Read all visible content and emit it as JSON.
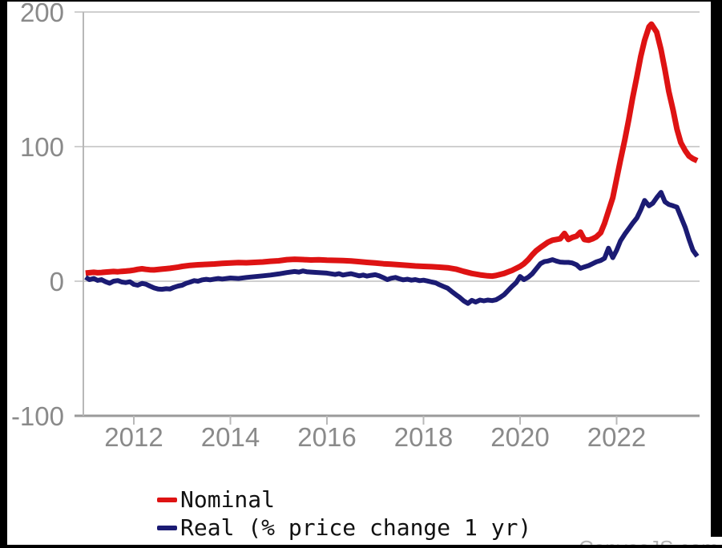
{
  "watermark": "CanvasJS.com",
  "legend": {
    "items": [
      {
        "label": "Nominal",
        "color": "#de1313"
      },
      {
        "label": "Real (% price change 1 yr)",
        "color": "#1b1b73"
      }
    ]
  },
  "colors": {
    "grid_line": "#cfcfcf",
    "axis_line_x": "#9a9a9a",
    "axis_line_y": "#b8b8b8",
    "tick_label": "#8a8a8a",
    "frame_border": "#000000",
    "background": "#ffffff",
    "nominal_line": "#de1313",
    "real_line": "#1b1b73"
  },
  "chart_data": {
    "type": "line",
    "title": "",
    "xlabel": "",
    "ylabel": "",
    "grid": true,
    "legend_position": "bottom-left",
    "x_axis": {
      "ticks": [
        2012,
        2014,
        2016,
        2018,
        2020,
        2022
      ],
      "tick_labels": [
        "2012",
        "2014",
        "2016",
        "2018",
        "2020",
        "2022"
      ],
      "range": [
        2010.95,
        2023.75
      ]
    },
    "y_axis": {
      "ticks": [
        200,
        100,
        0,
        -100
      ],
      "tick_labels": [
        "200",
        "100",
        "0",
        "-100"
      ],
      "range": [
        -100,
        200
      ]
    },
    "series": [
      {
        "name": "Nominal",
        "color": "#de1313",
        "stroke_width": 7,
        "points": [
          [
            2011.0,
            6
          ],
          [
            2011.08,
            6.3
          ],
          [
            2011.17,
            6.6
          ],
          [
            2011.25,
            6.3
          ],
          [
            2011.33,
            6.5
          ],
          [
            2011.42,
            6.8
          ],
          [
            2011.5,
            7
          ],
          [
            2011.58,
            7.2
          ],
          [
            2011.67,
            7
          ],
          [
            2011.75,
            7.3
          ],
          [
            2011.83,
            7.5
          ],
          [
            2011.92,
            7.8
          ],
          [
            2012.0,
            8.2
          ],
          [
            2012.08,
            8.8
          ],
          [
            2012.17,
            9.2
          ],
          [
            2012.25,
            8.8
          ],
          [
            2012.33,
            8.5
          ],
          [
            2012.42,
            8.4
          ],
          [
            2012.5,
            8.7
          ],
          [
            2012.58,
            9
          ],
          [
            2012.67,
            9.3
          ],
          [
            2012.75,
            9.6
          ],
          [
            2012.83,
            10
          ],
          [
            2012.92,
            10.5
          ],
          [
            2013.0,
            11
          ],
          [
            2013.17,
            11.8
          ],
          [
            2013.33,
            12.2
          ],
          [
            2013.5,
            12.5
          ],
          [
            2013.67,
            12.8
          ],
          [
            2013.83,
            13.2
          ],
          [
            2014.0,
            13.6
          ],
          [
            2014.17,
            13.8
          ],
          [
            2014.33,
            13.7
          ],
          [
            2014.5,
            14
          ],
          [
            2014.67,
            14.3
          ],
          [
            2014.83,
            14.8
          ],
          [
            2015.0,
            15.2
          ],
          [
            2015.17,
            16
          ],
          [
            2015.33,
            16.3
          ],
          [
            2015.5,
            16.1
          ],
          [
            2015.67,
            15.8
          ],
          [
            2015.83,
            15.9
          ],
          [
            2016.0,
            15.6
          ],
          [
            2016.17,
            15.5
          ],
          [
            2016.33,
            15.3
          ],
          [
            2016.5,
            15
          ],
          [
            2016.67,
            14.5
          ],
          [
            2016.83,
            14
          ],
          [
            2017.0,
            13.5
          ],
          [
            2017.17,
            13
          ],
          [
            2017.33,
            12.6
          ],
          [
            2017.5,
            12.2
          ],
          [
            2017.67,
            11.8
          ],
          [
            2017.83,
            11.3
          ],
          [
            2018.0,
            11
          ],
          [
            2018.17,
            10.8
          ],
          [
            2018.33,
            10.4
          ],
          [
            2018.5,
            10
          ],
          [
            2018.67,
            9
          ],
          [
            2018.83,
            7.3
          ],
          [
            2019.0,
            5.8
          ],
          [
            2019.17,
            4.7
          ],
          [
            2019.33,
            4
          ],
          [
            2019.42,
            3.8
          ],
          [
            2019.5,
            4.2
          ],
          [
            2019.67,
            5.8
          ],
          [
            2019.83,
            8
          ],
          [
            2020.0,
            11
          ],
          [
            2020.08,
            13
          ],
          [
            2020.17,
            16
          ],
          [
            2020.25,
            19.5
          ],
          [
            2020.33,
            22.5
          ],
          [
            2020.42,
            25
          ],
          [
            2020.5,
            27
          ],
          [
            2020.58,
            29
          ],
          [
            2020.67,
            30.5
          ],
          [
            2020.75,
            31
          ],
          [
            2020.83,
            31.5
          ],
          [
            2020.92,
            35.5
          ],
          [
            2021.0,
            31
          ],
          [
            2021.08,
            32.5
          ],
          [
            2021.17,
            33.5
          ],
          [
            2021.25,
            36.5
          ],
          [
            2021.33,
            31
          ],
          [
            2021.42,
            30.5
          ],
          [
            2021.5,
            31.5
          ],
          [
            2021.58,
            33
          ],
          [
            2021.67,
            36
          ],
          [
            2021.75,
            43
          ],
          [
            2021.83,
            52
          ],
          [
            2021.92,
            62
          ],
          [
            2022.0,
            76
          ],
          [
            2022.08,
            90
          ],
          [
            2022.17,
            105
          ],
          [
            2022.25,
            120
          ],
          [
            2022.33,
            136
          ],
          [
            2022.42,
            152
          ],
          [
            2022.5,
            167
          ],
          [
            2022.58,
            179
          ],
          [
            2022.67,
            189
          ],
          [
            2022.72,
            191
          ],
          [
            2022.83,
            185
          ],
          [
            2022.92,
            172
          ],
          [
            2023.0,
            157
          ],
          [
            2023.08,
            141
          ],
          [
            2023.17,
            127
          ],
          [
            2023.25,
            113
          ],
          [
            2023.33,
            103
          ],
          [
            2023.42,
            97
          ],
          [
            2023.5,
            93
          ],
          [
            2023.58,
            91
          ],
          [
            2023.67,
            89.5
          ]
        ]
      },
      {
        "name": "Real (% price change 1 yr)",
        "color": "#1b1b73",
        "stroke_width": 6,
        "points": [
          [
            2011.0,
            3
          ],
          [
            2011.08,
            1.2
          ],
          [
            2011.17,
            2
          ],
          [
            2011.25,
            0.6
          ],
          [
            2011.33,
            1.2
          ],
          [
            2011.42,
            -0.5
          ],
          [
            2011.5,
            -1.5
          ],
          [
            2011.58,
            0
          ],
          [
            2011.67,
            0.5
          ],
          [
            2011.75,
            -0.6
          ],
          [
            2011.83,
            -1
          ],
          [
            2011.92,
            -0.4
          ],
          [
            2012.0,
            -2.4
          ],
          [
            2012.08,
            -3
          ],
          [
            2012.17,
            -1.6
          ],
          [
            2012.25,
            -2.2
          ],
          [
            2012.33,
            -3.6
          ],
          [
            2012.42,
            -5
          ],
          [
            2012.5,
            -5.8
          ],
          [
            2012.58,
            -6
          ],
          [
            2012.67,
            -5.6
          ],
          [
            2012.75,
            -5.8
          ],
          [
            2012.83,
            -4.6
          ],
          [
            2012.92,
            -3.6
          ],
          [
            2013.0,
            -3
          ],
          [
            2013.08,
            -1.6
          ],
          [
            2013.17,
            -0.6
          ],
          [
            2013.25,
            0.4
          ],
          [
            2013.33,
            0
          ],
          [
            2013.42,
            1
          ],
          [
            2013.5,
            1.4
          ],
          [
            2013.58,
            1
          ],
          [
            2013.67,
            1.6
          ],
          [
            2013.75,
            2
          ],
          [
            2013.83,
            1.6
          ],
          [
            2013.92,
            2
          ],
          [
            2014.0,
            2.4
          ],
          [
            2014.17,
            2
          ],
          [
            2014.33,
            2.8
          ],
          [
            2014.5,
            3.4
          ],
          [
            2014.67,
            4
          ],
          [
            2014.83,
            4.6
          ],
          [
            2015.0,
            5.4
          ],
          [
            2015.17,
            6.4
          ],
          [
            2015.33,
            7.2
          ],
          [
            2015.42,
            6.8
          ],
          [
            2015.5,
            7.6
          ],
          [
            2015.58,
            7
          ],
          [
            2015.67,
            6.8
          ],
          [
            2015.83,
            6.4
          ],
          [
            2016.0,
            6
          ],
          [
            2016.17,
            5
          ],
          [
            2016.25,
            5.6
          ],
          [
            2016.33,
            4.6
          ],
          [
            2016.42,
            5.2
          ],
          [
            2016.5,
            5.6
          ],
          [
            2016.58,
            4.8
          ],
          [
            2016.67,
            4
          ],
          [
            2016.75,
            4.6
          ],
          [
            2016.83,
            3.8
          ],
          [
            2016.92,
            4.4
          ],
          [
            2017.0,
            4.8
          ],
          [
            2017.08,
            4
          ],
          [
            2017.17,
            2.6
          ],
          [
            2017.25,
            1.2
          ],
          [
            2017.33,
            2.2
          ],
          [
            2017.42,
            2.8
          ],
          [
            2017.5,
            1.8
          ],
          [
            2017.58,
            1
          ],
          [
            2017.67,
            1.5
          ],
          [
            2017.75,
            0.8
          ],
          [
            2017.83,
            1.2
          ],
          [
            2017.92,
            0.4
          ],
          [
            2018.0,
            0.8
          ],
          [
            2018.08,
            0.2
          ],
          [
            2018.17,
            -0.6
          ],
          [
            2018.25,
            -1.2
          ],
          [
            2018.33,
            -2.6
          ],
          [
            2018.42,
            -4
          ],
          [
            2018.5,
            -5.2
          ],
          [
            2018.58,
            -7.5
          ],
          [
            2018.67,
            -10
          ],
          [
            2018.75,
            -12
          ],
          [
            2018.83,
            -14.5
          ],
          [
            2018.92,
            -16.5
          ],
          [
            2019.0,
            -14.2
          ],
          [
            2019.08,
            -15.5
          ],
          [
            2019.17,
            -14
          ],
          [
            2019.25,
            -14.6
          ],
          [
            2019.33,
            -14
          ],
          [
            2019.42,
            -14.4
          ],
          [
            2019.5,
            -13.8
          ],
          [
            2019.58,
            -12.2
          ],
          [
            2019.67,
            -10
          ],
          [
            2019.75,
            -7
          ],
          [
            2019.83,
            -4
          ],
          [
            2019.92,
            -1
          ],
          [
            2020.0,
            3.5
          ],
          [
            2020.08,
            1.2
          ],
          [
            2020.17,
            3
          ],
          [
            2020.25,
            5.5
          ],
          [
            2020.33,
            9
          ],
          [
            2020.42,
            13
          ],
          [
            2020.5,
            14.5
          ],
          [
            2020.58,
            15
          ],
          [
            2020.67,
            16
          ],
          [
            2020.75,
            15
          ],
          [
            2020.83,
            14.2
          ],
          [
            2020.92,
            14
          ],
          [
            2021.0,
            14
          ],
          [
            2021.08,
            13.6
          ],
          [
            2021.17,
            12.2
          ],
          [
            2021.25,
            9.6
          ],
          [
            2021.33,
            10.6
          ],
          [
            2021.42,
            11.6
          ],
          [
            2021.5,
            13
          ],
          [
            2021.58,
            14.4
          ],
          [
            2021.67,
            15.4
          ],
          [
            2021.75,
            17
          ],
          [
            2021.83,
            24.5
          ],
          [
            2021.92,
            17.5
          ],
          [
            2022.0,
            23
          ],
          [
            2022.08,
            30
          ],
          [
            2022.17,
            35
          ],
          [
            2022.25,
            39
          ],
          [
            2022.33,
            43
          ],
          [
            2022.42,
            47
          ],
          [
            2022.5,
            53
          ],
          [
            2022.58,
            60
          ],
          [
            2022.67,
            56
          ],
          [
            2022.75,
            58
          ],
          [
            2022.83,
            62
          ],
          [
            2022.92,
            66
          ],
          [
            2023.0,
            59
          ],
          [
            2023.08,
            57
          ],
          [
            2023.17,
            56
          ],
          [
            2023.25,
            55
          ],
          [
            2023.33,
            48
          ],
          [
            2023.42,
            40
          ],
          [
            2023.5,
            31
          ],
          [
            2023.58,
            23
          ],
          [
            2023.67,
            18.5
          ]
        ]
      }
    ]
  }
}
